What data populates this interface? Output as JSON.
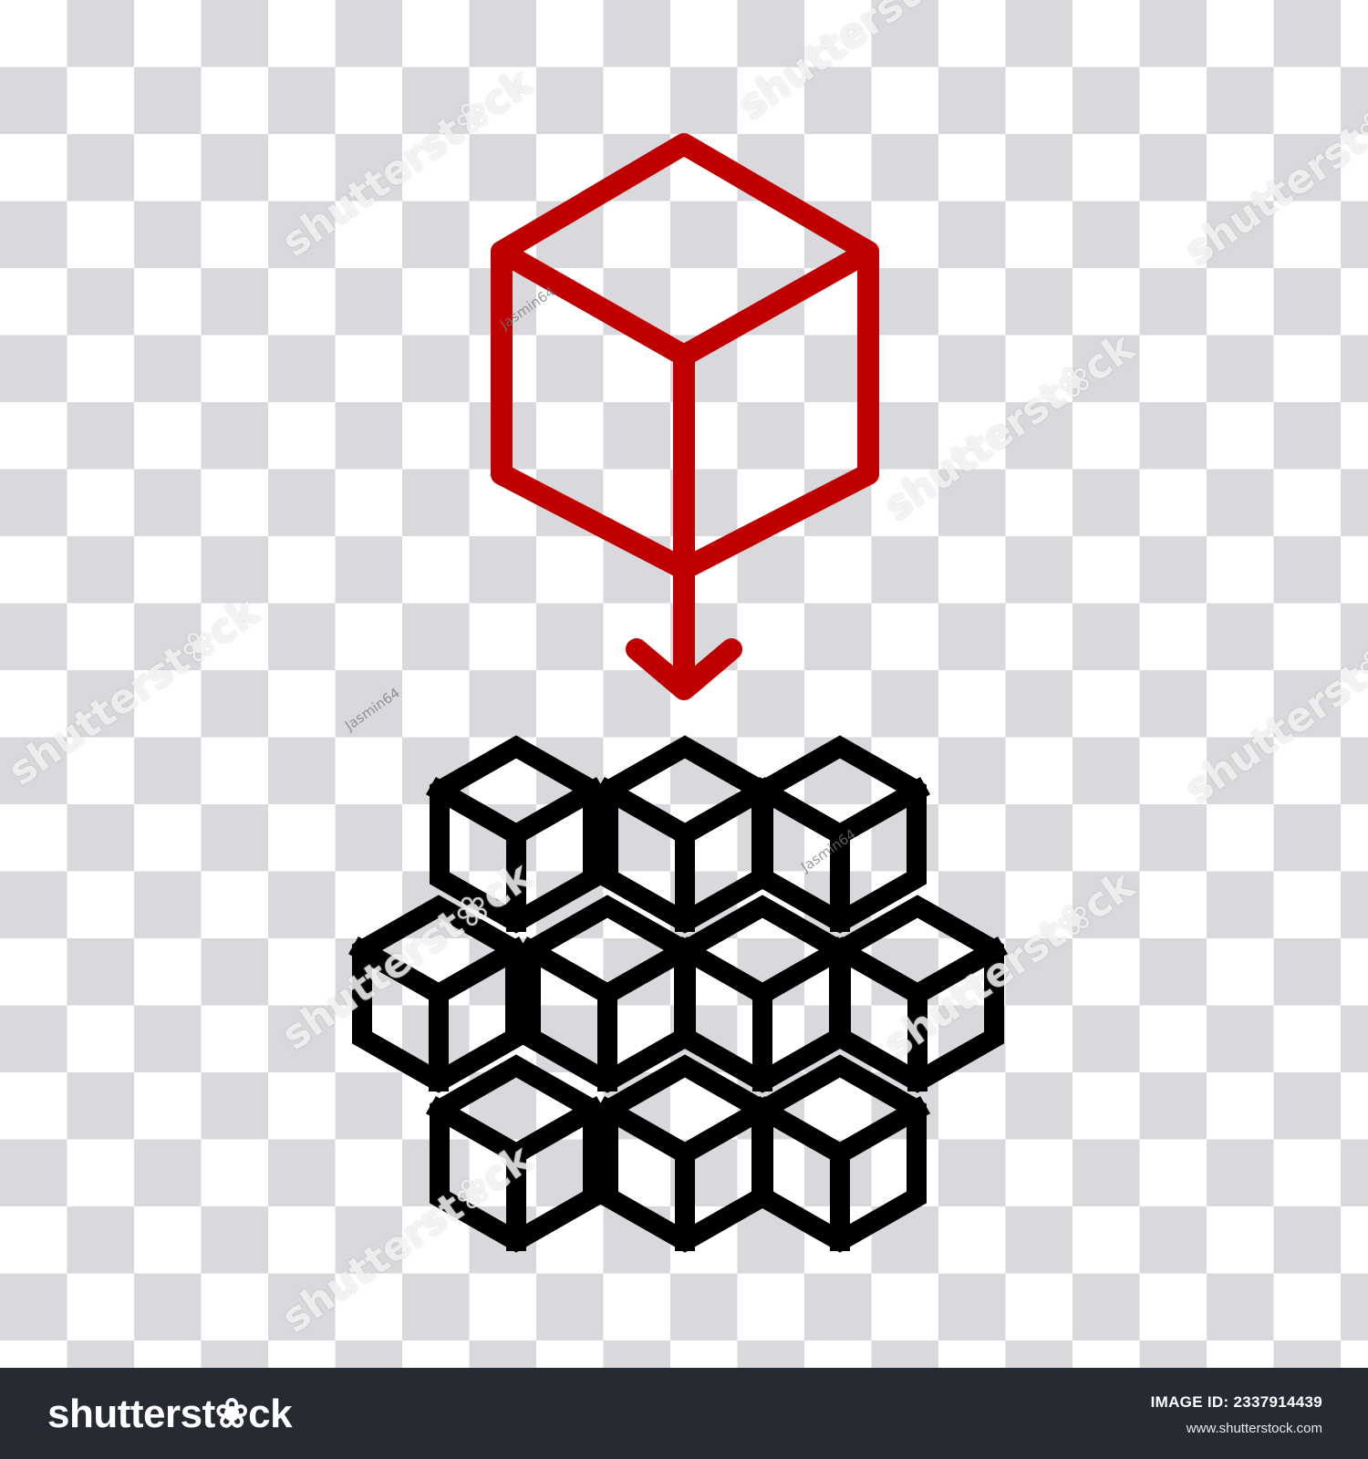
{
  "colors": {
    "accent_cube": "#c00000",
    "cluster_cubes": "#000000",
    "checker_light": "#ffffff",
    "checker_dark": "#d9d9dd",
    "footer_bg": "#262a33"
  },
  "icons": {
    "single_cube": "single-cube-icon",
    "arrow": "arrow-down-icon",
    "cluster": "cube-cluster-icon"
  },
  "watermark": {
    "brand": "shutterst❀ck",
    "contributor": "Jasmin64"
  },
  "footer": {
    "logo": "shutterst❀ck",
    "image_id": "IMAGE ID: 2337914439",
    "url": "www.shutterstock.com"
  }
}
